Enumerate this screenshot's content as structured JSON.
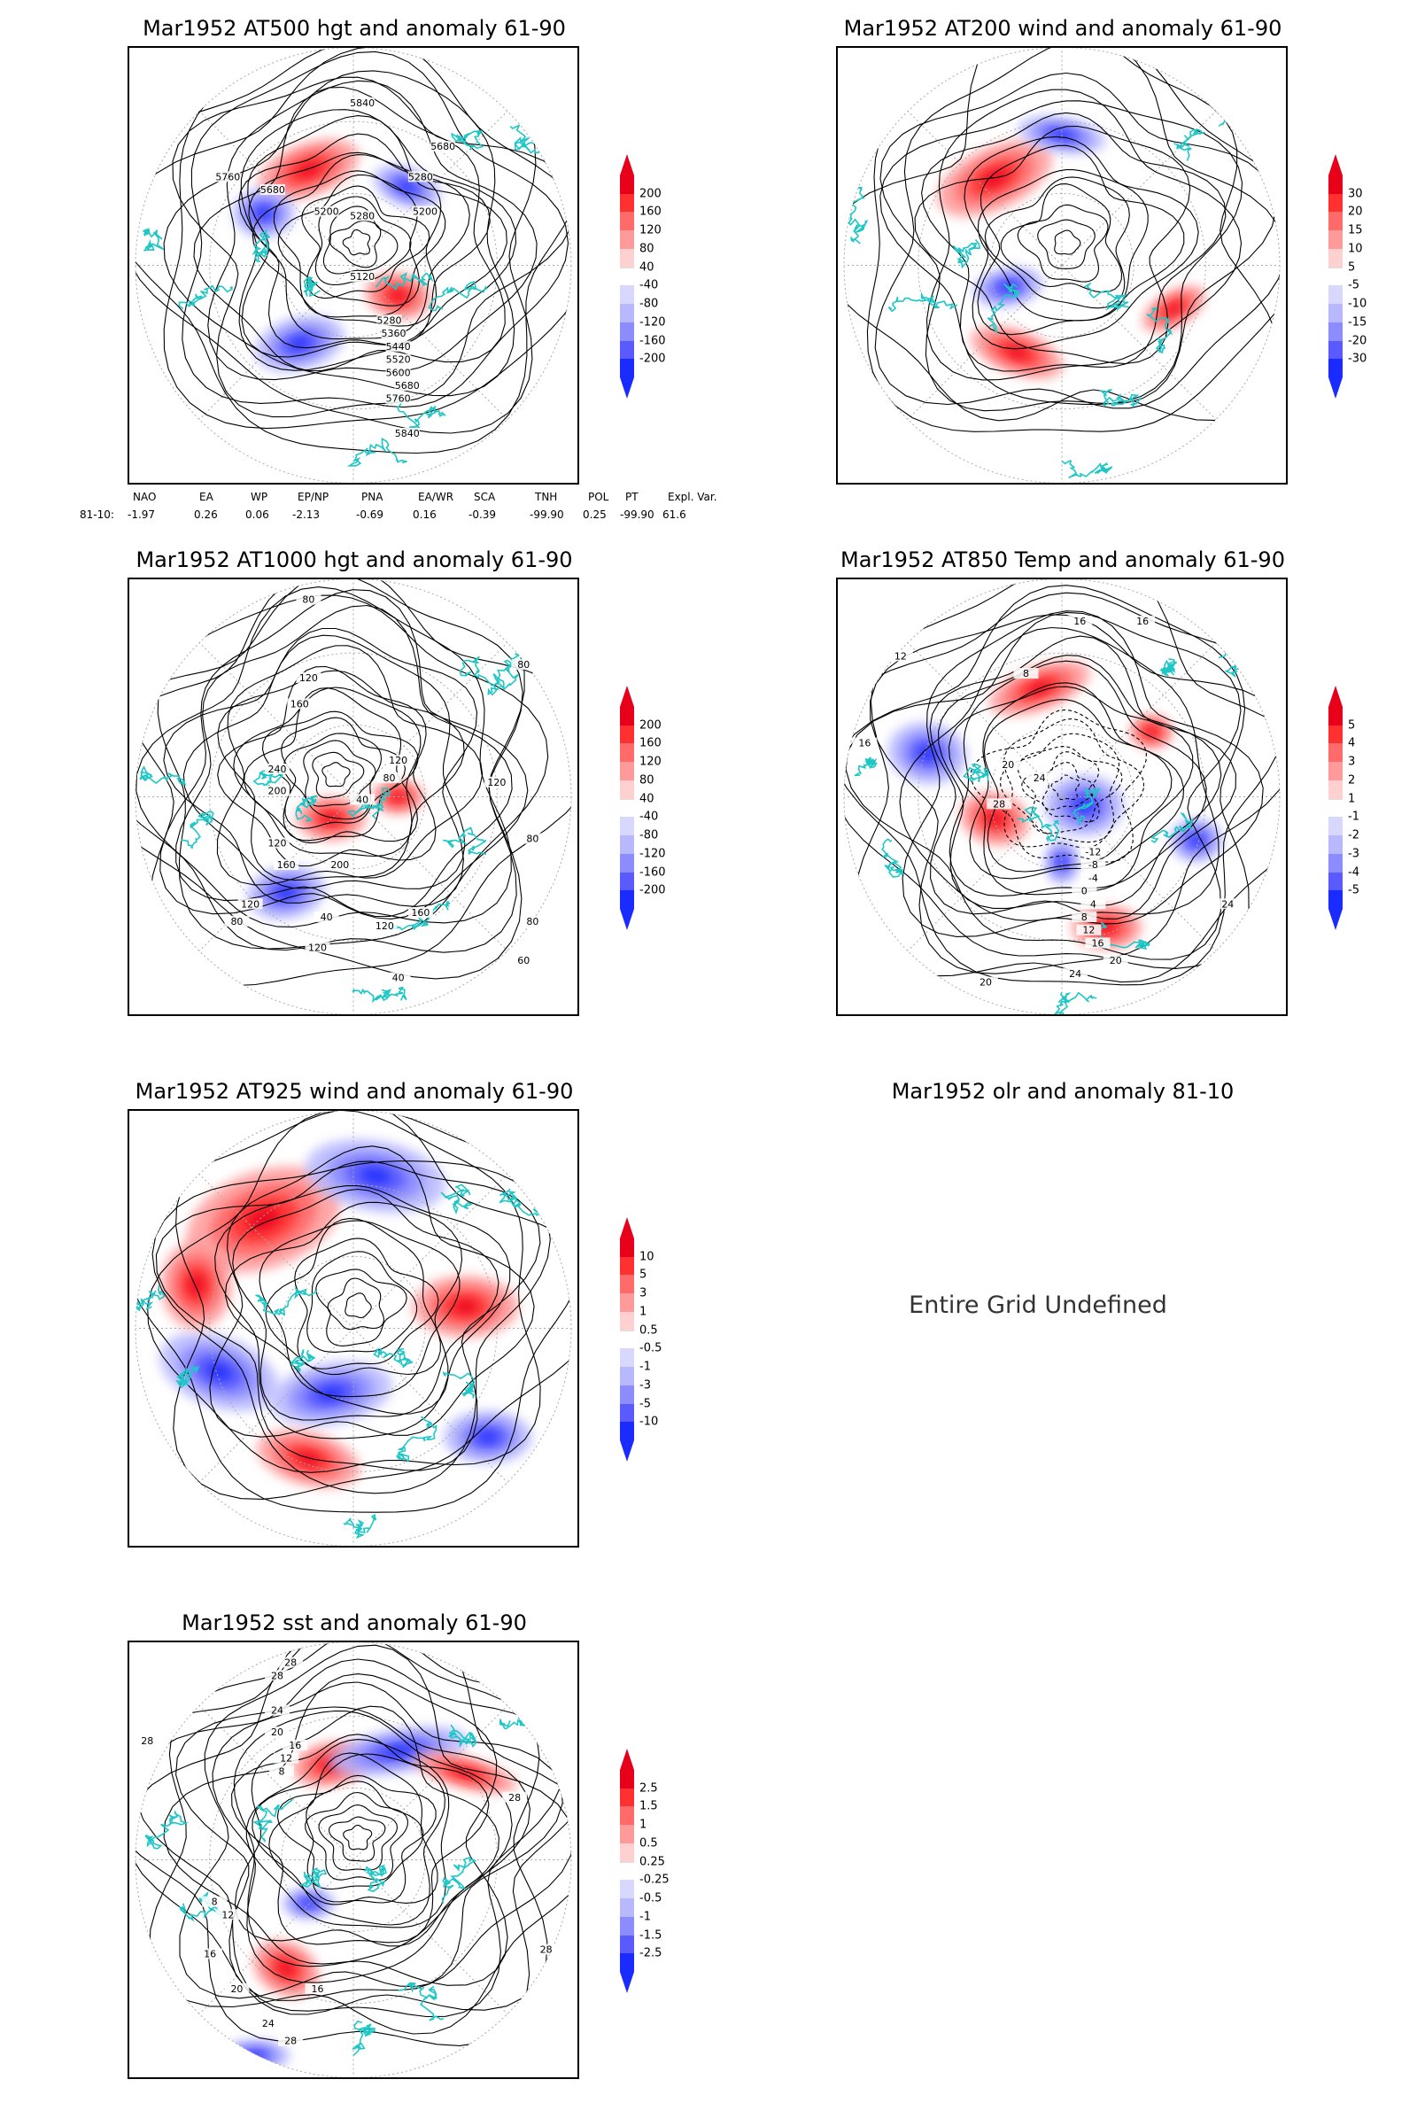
{
  "panels": [
    {
      "title": "Mar1952 AT500 hgt and anomaly 61-90",
      "labels": [
        "5840",
        "5760",
        "5680",
        "5680",
        "5280",
        "5200",
        "5280",
        "5200",
        "5120",
        "5280",
        "5360",
        "5440",
        "5520",
        "5600",
        "5680",
        "5760",
        "5840"
      ],
      "colorbar": [
        "200",
        "160",
        "120",
        "80",
        "40",
        "-40",
        "-80",
        "-120",
        "-160",
        "-200"
      ]
    },
    {
      "title": "Mar1952 AT200 wind and anomaly 61-90",
      "labels": [],
      "colorbar": [
        "30",
        "20",
        "15",
        "10",
        "5",
        "-5",
        "-10",
        "-15",
        "-20",
        "-30"
      ]
    },
    {
      "title": "Mar1952 AT1000 hgt and anomaly 61-90",
      "labels": [
        "80",
        "120",
        "160",
        "240",
        "200",
        "120",
        "80",
        "40",
        "120",
        "160",
        "200",
        "120",
        "80",
        "40",
        "120",
        "160",
        "80",
        "120",
        "80",
        "120",
        "40",
        "80",
        "60"
      ],
      "colorbar": [
        "200",
        "160",
        "120",
        "80",
        "40",
        "-40",
        "-80",
        "-120",
        "-160",
        "-200"
      ]
    },
    {
      "title": "Mar1952 AT850 Temp and anomaly 61-90",
      "labels": [
        "16",
        "16",
        "12",
        "8",
        "16",
        "20",
        "24",
        "28",
        "-12",
        "-8",
        "-4",
        "0",
        "4",
        "8",
        "12",
        "16",
        "20",
        "24",
        "20",
        "24"
      ],
      "colorbar": [
        "5",
        "4",
        "3",
        "2",
        "1",
        "-1",
        "-2",
        "-3",
        "-4",
        "-5"
      ]
    },
    {
      "title": "Mar1952 AT925 wind and anomaly 61-90",
      "labels": [],
      "colorbar": [
        "10",
        "5",
        "3",
        "1",
        "0.5",
        "-0.5",
        "-1",
        "-3",
        "-5",
        "-10"
      ]
    },
    {
      "title": "Mar1952 olr and anomaly 81-10",
      "undefined_text": "Entire Grid Undefined"
    },
    {
      "title": "Mar1952 sst and anomaly 61-90",
      "labels": [
        "28",
        "28",
        "24",
        "20",
        "16",
        "12",
        "8",
        "28",
        "28",
        "28",
        "8",
        "12",
        "16",
        "20",
        "24",
        "28",
        "16"
      ],
      "colorbar": [
        "2.5",
        "1.5",
        "1",
        "0.5",
        "0.25",
        "-0.25",
        "-0.5",
        "-1",
        "-1.5",
        "-2.5"
      ]
    }
  ],
  "indices": {
    "headers": [
      "NAO",
      "EA",
      "WP",
      "EP/NP",
      "PNA",
      "EA/WR",
      "SCA",
      "TNH",
      "POL",
      "PT",
      "Expl. Var."
    ],
    "row_label": "81-10:",
    "values": [
      "-1.97",
      "0.26",
      "0.06",
      "-2.13",
      "-0.69",
      "0.16",
      "-0.39",
      "-99.90",
      "0.25",
      "-99.90",
      "61.6"
    ]
  },
  "colors": {
    "coast": "#1fc6c6",
    "contour": "#000000",
    "pos": [
      "#ff9a9a",
      "#ff6a6a",
      "#ff3030",
      "#e8001a"
    ],
    "neg": [
      "#b8b8ff",
      "#8c8cff",
      "#5a5aff",
      "#1a2bff"
    ]
  }
}
